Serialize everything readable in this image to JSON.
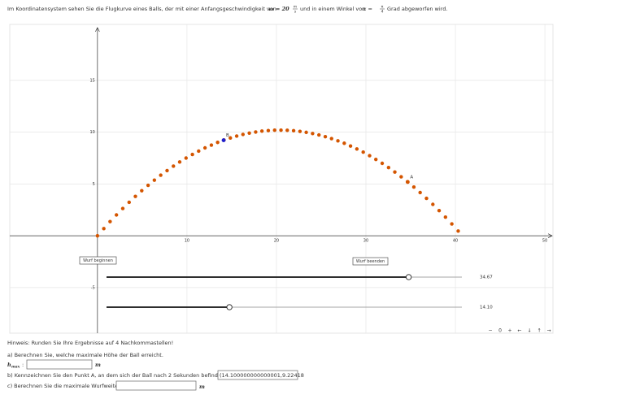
{
  "intro": {
    "text1": "Im Koordinatensystem sehen Sie die Flugkurve eines Balls, der mit einer Anfangsgeschwindigkeit von",
    "v0": "v₀ = 20",
    "unit_num": "m",
    "unit_den": "s",
    "text2": "und in einem Winkel von",
    "alpha": "α =",
    "angle_num": "π",
    "angle_den": "4",
    "text3": "Grad abgeworfen wird."
  },
  "graph": {
    "xlim": [
      -9.8,
      50.9
    ],
    "ylim": [
      -9.4,
      20.4
    ],
    "xticks": [
      10,
      20,
      30,
      40,
      50
    ],
    "yticks": [
      -5,
      5,
      10,
      15
    ],
    "grid": true,
    "color": "#d45500",
    "trajectory": {
      "x": [
        0,
        0.71,
        1.41,
        2.12,
        2.83,
        3.54,
        4.24,
        4.95,
        5.66,
        6.36,
        7.07,
        7.78,
        8.49,
        9.19,
        9.9,
        10.61,
        11.31,
        12.02,
        12.73,
        13.43,
        14.14,
        14.85,
        15.56,
        16.26,
        16.97,
        17.68,
        18.38,
        19.09,
        19.8,
        20.51,
        21.21,
        21.92,
        22.63,
        23.33,
        24.04,
        24.75,
        25.46,
        26.16,
        26.87,
        27.58,
        28.28,
        28.99,
        29.7,
        30.41,
        31.11,
        31.82,
        32.53,
        33.23,
        33.94,
        34.65,
        35.36,
        36.06,
        36.77,
        37.48,
        38.18,
        38.89,
        39.6,
        40.31
      ],
      "y": [
        0,
        0.69,
        1.37,
        2.01,
        2.63,
        3.23,
        3.8,
        4.35,
        4.87,
        5.37,
        5.85,
        6.29,
        6.72,
        7.12,
        7.5,
        7.85,
        8.17,
        8.48,
        8.75,
        9.01,
        9.24,
        9.44,
        9.62,
        9.78,
        9.91,
        10.01,
        10.1,
        10.15,
        10.19,
        10.19,
        10.18,
        10.14,
        10.07,
        9.98,
        9.87,
        9.73,
        9.56,
        9.38,
        9.16,
        8.93,
        8.66,
        8.38,
        8.07,
        7.73,
        7.37,
        6.99,
        6.58,
        6.15,
        5.69,
        5.21,
        4.7,
        4.17,
        3.61,
        3.03,
        2.43,
        1.8,
        1.14,
        0.46
      ]
    },
    "points": [
      {
        "label": "A",
        "x": 34.67,
        "y": 5.19,
        "color": "#d45500"
      },
      {
        "label": "B",
        "x": 14.1,
        "y": 9.22,
        "color": "#1f1fcc"
      }
    ],
    "buttons": [
      "Wurf beginnen",
      "Wurf beenden"
    ],
    "sliders": {
      "values": [
        34.67,
        14.1
      ],
      "value_labels": [
        "34.67",
        "14.10"
      ],
      "range": [
        0,
        40.77
      ]
    },
    "nav": [
      "−",
      "0",
      "+",
      "←",
      "↓",
      "↑",
      "→"
    ]
  },
  "questions": {
    "hint": "Hinweis: Runden Sie Ihre Ergebnisse auf 4 Nachkommastellen!",
    "a": {
      "text": "a) Berechnen Sie, welche maximale Höhe der Ball erreicht.",
      "var": "h",
      "sub": "max",
      "suffix": ":",
      "unit": "m"
    },
    "b": {
      "text": "b) Kennzeichnen Sie den Punkt A, an dem sich der Ball nach 2 Sekunden befindet.",
      "input": "(14.100000000000001,9.22418"
    },
    "c": {
      "text": "c) Berechnen Sie die maximale Wurfweite:",
      "unit": "m"
    }
  }
}
